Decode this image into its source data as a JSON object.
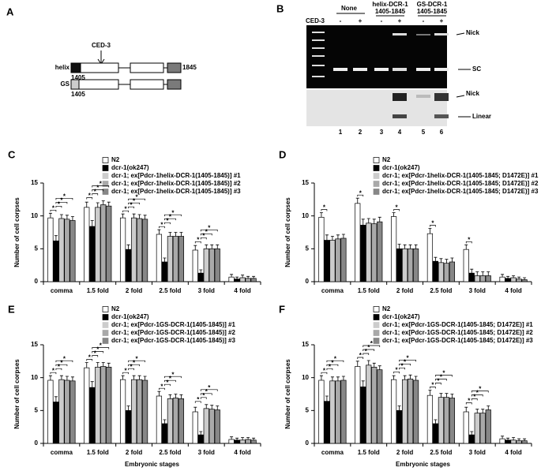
{
  "panel_a": {
    "label": "A",
    "protease": "CED-3",
    "constructs": [
      {
        "name": "helix",
        "start": "1405",
        "end": "1845"
      },
      {
        "name": "GS",
        "start": "1405"
      }
    ]
  },
  "panel_b": {
    "label": "B",
    "treatment": "CED-3",
    "groups": [
      {
        "name": "None"
      },
      {
        "name": "helix-DCR-1",
        "range": "1405-1845"
      },
      {
        "name": "GS-DCR-1",
        "range": "1405-1845"
      }
    ],
    "ced3": [
      "-",
      "+",
      "-",
      "+",
      "-",
      "+"
    ],
    "lanes": [
      1,
      2,
      3,
      4,
      5,
      6
    ],
    "band_labels": [
      "Nick",
      "SC",
      "Nick",
      "Linear"
    ]
  },
  "chart_data": [
    {
      "type": "bar",
      "panel": "C",
      "ylabel": "Number of cell corpses",
      "categories": [
        "comma",
        "1.5 fold",
        "2 fold",
        "2.5 fold",
        "3 fold",
        "4 fold"
      ],
      "ylim": [
        0,
        15
      ],
      "yticks": [
        0,
        5,
        10,
        15
      ],
      "series": [
        {
          "name": "N2",
          "color": "#ffffff",
          "values": [
            9.7,
            11.3,
            9.7,
            7.2,
            4.8,
            0.7
          ],
          "errors": [
            0.7,
            0.8,
            0.6,
            0.7,
            0.7,
            0.4
          ]
        },
        {
          "name": "dcr-1(ok247)",
          "color": "#000000",
          "values": [
            6.2,
            8.4,
            4.9,
            3.0,
            1.3,
            0.4
          ],
          "errors": [
            0.8,
            0.9,
            0.7,
            0.6,
            0.5,
            0.3
          ]
        },
        {
          "name": "dcr-1; ex[Pdcr-1helix-DCR-1(1405-1845)] #1",
          "color": "#cccccc",
          "values": [
            9.6,
            11.3,
            9.7,
            6.9,
            5.0,
            0.6
          ],
          "errors": [
            0.6,
            0.7,
            0.6,
            0.6,
            0.6,
            0.4
          ]
        },
        {
          "name": "dcr-1; ex[Pdcr-1helix-DCR-1(1405-1845)] #2",
          "color": "#a9a9a9",
          "values": [
            9.5,
            11.7,
            9.6,
            6.9,
            5.0,
            0.5
          ],
          "errors": [
            0.6,
            0.6,
            0.6,
            0.6,
            0.6,
            0.3
          ]
        },
        {
          "name": "dcr-1; ex[Pdcr-1helix-DCR-1(1405-1845)] #3",
          "color": "#878787",
          "values": [
            9.3,
            11.5,
            9.5,
            6.9,
            5.0,
            0.5
          ],
          "errors": [
            0.6,
            0.6,
            0.6,
            0.6,
            0.6,
            0.3
          ]
        }
      ],
      "significance": [
        {
          "category": 0,
          "pairs": [
            [
              0,
              1
            ],
            [
              1,
              2
            ],
            [
              1,
              3
            ],
            [
              1,
              4
            ]
          ],
          "text": "*"
        },
        {
          "category": 1,
          "pairs": [
            [
              0,
              1
            ],
            [
              1,
              2
            ],
            [
              1,
              3
            ],
            [
              1,
              4
            ]
          ],
          "text": "*"
        },
        {
          "category": 2,
          "pairs": [
            [
              0,
              1
            ],
            [
              1,
              2
            ],
            [
              1,
              3
            ],
            [
              1,
              4
            ]
          ],
          "text": "*"
        },
        {
          "category": 3,
          "pairs": [
            [
              0,
              1
            ],
            [
              1,
              2
            ],
            [
              1,
              3
            ],
            [
              1,
              4
            ]
          ],
          "text": "*"
        },
        {
          "category": 4,
          "pairs": [
            [
              0,
              1
            ],
            [
              1,
              2
            ],
            [
              1,
              3
            ],
            [
              1,
              4
            ]
          ],
          "text": "*"
        }
      ]
    },
    {
      "type": "bar",
      "panel": "D",
      "ylabel": "Number of cell corpses",
      "categories": [
        "comma",
        "1.5 fold",
        "2 fold",
        "2.5 fold",
        "3 fold",
        "4 fold"
      ],
      "ylim": [
        0,
        15
      ],
      "yticks": [
        0,
        5,
        10,
        15
      ],
      "series": [
        {
          "name": "N2",
          "color": "#ffffff",
          "values": [
            9.8,
            11.9,
            9.9,
            7.3,
            4.9,
            0.7
          ],
          "errors": [
            0.7,
            0.8,
            0.6,
            0.8,
            0.7,
            0.4
          ]
        },
        {
          "name": "dcr-1(ok247)",
          "color": "#000000",
          "values": [
            6.3,
            8.6,
            5.0,
            3.1,
            1.3,
            0.5
          ],
          "errors": [
            0.8,
            0.9,
            0.7,
            0.6,
            0.6,
            0.3
          ]
        },
        {
          "name": "dcr-1; ex[Pdcr-1helix-DCR-1(1405-1845; D1472E)] #1",
          "color": "#cccccc",
          "values": [
            6.3,
            8.9,
            5.0,
            2.9,
            0.9,
            0.6
          ],
          "errors": [
            0.6,
            0.7,
            0.6,
            0.6,
            0.6,
            0.3
          ]
        },
        {
          "name": "dcr-1; ex[Pdcr-1helix-DCR-1(1405-1845; D1472E)] #2",
          "color": "#a9a9a9",
          "values": [
            6.5,
            8.8,
            5.0,
            2.8,
            0.9,
            0.4
          ],
          "errors": [
            0.6,
            0.7,
            0.6,
            0.6,
            0.6,
            0.3
          ]
        },
        {
          "name": "dcr-1; ex[Pdcr-1helix-DCR-1(1405-1845; D1472E)] #3",
          "color": "#878787",
          "values": [
            6.6,
            9.1,
            5.0,
            3.0,
            0.9,
            0.3
          ],
          "errors": [
            0.6,
            0.7,
            0.6,
            0.6,
            0.6,
            0.3
          ]
        }
      ],
      "significance": [
        {
          "category": 0,
          "pairs": [
            [
              0,
              1
            ]
          ],
          "text": "*"
        },
        {
          "category": 1,
          "pairs": [
            [
              0,
              1
            ]
          ],
          "text": "*"
        },
        {
          "category": 2,
          "pairs": [
            [
              0,
              1
            ]
          ],
          "text": "*"
        },
        {
          "category": 3,
          "pairs": [
            [
              0,
              1
            ]
          ],
          "text": "*"
        },
        {
          "category": 4,
          "pairs": [
            [
              0,
              1
            ]
          ],
          "text": "*"
        }
      ]
    },
    {
      "type": "bar",
      "panel": "E",
      "ylabel": "Number of cell corpses",
      "xlabel": "Embryonic stages",
      "categories": [
        "comma",
        "1.5 fold",
        "2 fold",
        "2.5 fold",
        "3 fold",
        "4 fold"
      ],
      "ylim": [
        0,
        15
      ],
      "yticks": [
        0,
        5,
        10,
        15
      ],
      "series": [
        {
          "name": "N2",
          "color": "#ffffff",
          "values": [
            9.6,
            11.5,
            9.7,
            7.2,
            4.8,
            0.6
          ],
          "errors": [
            0.7,
            0.8,
            0.6,
            0.7,
            0.7,
            0.4
          ]
        },
        {
          "name": "dcr-1(ok247)",
          "color": "#000000",
          "values": [
            6.3,
            8.5,
            5.0,
            3.0,
            1.3,
            0.5
          ],
          "errors": [
            0.8,
            0.9,
            0.7,
            0.6,
            0.5,
            0.3
          ]
        },
        {
          "name": "dcr-1; ex[Pdcr-1GS-DCR-1(1405-1845)] #1",
          "color": "#cccccc",
          "values": [
            9.7,
            11.6,
            9.7,
            6.8,
            5.3,
            0.5
          ],
          "errors": [
            0.6,
            0.7,
            0.6,
            0.6,
            0.6,
            0.4
          ]
        },
        {
          "name": "dcr-1; ex[Pdcr-1GS-DCR-1(1405-1845)] #2",
          "color": "#a9a9a9",
          "values": [
            9.6,
            11.7,
            9.7,
            6.9,
            5.2,
            0.6
          ],
          "errors": [
            0.6,
            0.6,
            0.6,
            0.6,
            0.6,
            0.3
          ]
        },
        {
          "name": "dcr-1; ex[Pdcr-1GS-DCR-1(1405-1845)] #3",
          "color": "#878787",
          "values": [
            9.5,
            11.6,
            9.6,
            6.8,
            5.1,
            0.5
          ],
          "errors": [
            0.6,
            0.6,
            0.6,
            0.6,
            0.6,
            0.3
          ]
        }
      ],
      "significance": [
        {
          "category": 0,
          "pairs": [
            [
              0,
              1
            ],
            [
              1,
              2
            ],
            [
              1,
              3
            ],
            [
              1,
              4
            ]
          ],
          "text": "*"
        },
        {
          "category": 1,
          "pairs": [
            [
              0,
              1
            ],
            [
              1,
              2
            ],
            [
              1,
              3
            ],
            [
              1,
              4
            ]
          ],
          "text": "*"
        },
        {
          "category": 2,
          "pairs": [
            [
              0,
              1
            ],
            [
              1,
              2
            ],
            [
              1,
              3
            ],
            [
              1,
              4
            ]
          ],
          "text": "*"
        },
        {
          "category": 3,
          "pairs": [
            [
              0,
              1
            ],
            [
              1,
              2
            ],
            [
              1,
              3
            ],
            [
              1,
              4
            ]
          ],
          "text": "*"
        },
        {
          "category": 4,
          "pairs": [
            [
              0,
              1
            ],
            [
              1,
              2
            ],
            [
              1,
              3
            ],
            [
              1,
              4
            ]
          ],
          "text": "*"
        }
      ]
    },
    {
      "type": "bar",
      "panel": "F",
      "ylabel": "Number of cell corpses",
      "xlabel": "Embryonic stages",
      "categories": [
        "comma",
        "1.5 fold",
        "2 fold",
        "2.5 fold",
        "3 fold",
        "4 fold"
      ],
      "ylim": [
        0,
        15
      ],
      "yticks": [
        0,
        5,
        10,
        15
      ],
      "series": [
        {
          "name": "N2",
          "color": "#ffffff",
          "values": [
            9.6,
            11.7,
            9.7,
            7.3,
            4.8,
            0.7
          ],
          "errors": [
            0.7,
            0.8,
            0.6,
            0.8,
            0.7,
            0.4
          ]
        },
        {
          "name": "dcr-1(ok247)",
          "color": "#000000",
          "values": [
            6.4,
            8.6,
            5.0,
            3.0,
            1.3,
            0.5
          ],
          "errors": [
            0.8,
            0.9,
            0.7,
            0.6,
            0.5,
            0.3
          ]
        },
        {
          "name": "dcr-1; ex[Pdcr-1GS-DCR-1(1405-1845; D1472E)] #1",
          "color": "#cccccc",
          "values": [
            9.5,
            11.9,
            9.7,
            7.0,
            4.6,
            0.5
          ],
          "errors": [
            0.6,
            0.7,
            0.6,
            0.6,
            0.6,
            0.4
          ]
        },
        {
          "name": "dcr-1; ex[Pdcr-1GS-DCR-1(1405-1845; D1472E)] #2",
          "color": "#a9a9a9",
          "values": [
            9.5,
            11.6,
            9.8,
            7.0,
            4.6,
            0.4
          ],
          "errors": [
            0.6,
            0.6,
            0.6,
            0.6,
            0.6,
            0.3
          ]
        },
        {
          "name": "dcr-1; ex[Pdcr-1GS-DCR-1(1405-1845; D1472E)] #3",
          "color": "#878787",
          "values": [
            9.6,
            11.2,
            9.6,
            6.9,
            5.1,
            0.4
          ],
          "errors": [
            0.6,
            0.6,
            0.6,
            0.6,
            0.6,
            0.3
          ]
        }
      ],
      "significance": [
        {
          "category": 0,
          "pairs": [
            [
              0,
              1
            ],
            [
              1,
              2
            ],
            [
              1,
              3
            ],
            [
              1,
              4
            ]
          ],
          "text": "*"
        },
        {
          "category": 1,
          "pairs": [
            [
              0,
              1
            ],
            [
              1,
              2
            ],
            [
              1,
              3
            ],
            [
              1,
              4
            ]
          ],
          "text": "*"
        },
        {
          "category": 2,
          "pairs": [
            [
              0,
              1
            ],
            [
              1,
              2
            ],
            [
              1,
              3
            ],
            [
              1,
              4
            ]
          ],
          "text": "*"
        },
        {
          "category": 3,
          "pairs": [
            [
              0,
              1
            ],
            [
              1,
              2
            ],
            [
              1,
              3
            ],
            [
              1,
              4
            ]
          ],
          "text": "*"
        },
        {
          "category": 4,
          "pairs": [
            [
              0,
              1
            ],
            [
              1,
              2
            ],
            [
              1,
              3
            ],
            [
              1,
              4
            ]
          ],
          "text": "*"
        }
      ]
    }
  ]
}
